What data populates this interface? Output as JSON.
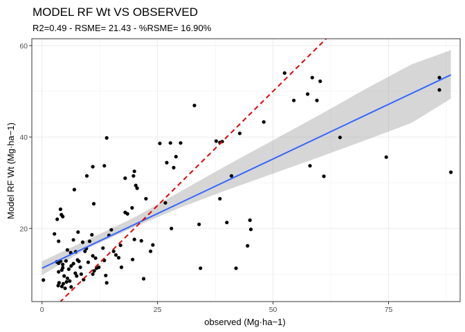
{
  "chart_data": {
    "type": "scatter",
    "title": "MODEL RF Wt VS OBSERVED",
    "subtitle": "R2=0.49 - RSME= 21.43 - %RSME= 16.90%",
    "xlabel": "observed (Mg·ha−1)",
    "ylabel": "Model RF Wt (Mg·ha−1)",
    "xlim": [
      -2.2,
      90.5
    ],
    "ylim": [
      4.0,
      61.5
    ],
    "x_ticks": [
      0,
      25,
      50,
      75
    ],
    "y_ticks": [
      20,
      40,
      60
    ],
    "grid": true,
    "legend": "none",
    "colors": {
      "points": "#000000",
      "fit_line": "#3366ff",
      "ci_band": "#999999",
      "identity_line": "#e00000",
      "panel_border": "#333333",
      "grid": "#ebebeb"
    },
    "fit_line": {
      "x": [
        0,
        88.5
      ],
      "y": [
        11.3,
        53.6
      ]
    },
    "confidence_band": {
      "x": [
        0,
        10,
        20,
        30,
        40,
        50,
        60,
        70,
        80,
        88.5
      ],
      "lower": [
        9.8,
        15.7,
        20.3,
        24.6,
        28.4,
        32.0,
        35.6,
        39.3,
        43.1,
        48.4
      ],
      "upper": [
        12.8,
        17.6,
        22.4,
        28.1,
        33.8,
        39.3,
        44.8,
        50.5,
        55.9,
        59.0
      ]
    },
    "identity_line": {
      "x": [
        0,
        62
      ],
      "y": [
        0,
        62
      ]
    },
    "points": [
      [
        0.3,
        8.7
      ],
      [
        2.7,
        18.8
      ],
      [
        3.3,
        22.0
      ],
      [
        3.6,
        17.2
      ],
      [
        4.0,
        24.2
      ],
      [
        4.2,
        23.0
      ],
      [
        4.5,
        22.6
      ],
      [
        3.2,
        12.7
      ],
      [
        3.6,
        12.4
      ],
      [
        4.0,
        12.8
      ],
      [
        4.5,
        12.1
      ],
      [
        5.2,
        12.9
      ],
      [
        5.5,
        15.3
      ],
      [
        3.6,
        10.5
      ],
      [
        4.3,
        10.9
      ],
      [
        4.5,
        11.4
      ],
      [
        4.8,
        9.6
      ],
      [
        5.5,
        9.1
      ],
      [
        3.7,
        8.1
      ],
      [
        4.3,
        7.3
      ],
      [
        4.6,
        7.9
      ],
      [
        5.0,
        6.9
      ],
      [
        5.3,
        8.3
      ],
      [
        6.0,
        8.5
      ],
      [
        6.3,
        7.2
      ],
      [
        3.5,
        7.5
      ],
      [
        5.8,
        11.1
      ],
      [
        6.3,
        11.8
      ],
      [
        6.8,
        12.3
      ],
      [
        7.2,
        10.2
      ],
      [
        7.5,
        9.6
      ],
      [
        7.7,
        13.1
      ],
      [
        8.0,
        12.8
      ],
      [
        8.3,
        11.5
      ],
      [
        8.5,
        10.0
      ],
      [
        9.0,
        8.8
      ],
      [
        6.2,
        14.7
      ],
      [
        6.8,
        17.5
      ],
      [
        7.3,
        14.9
      ],
      [
        7.8,
        19.2
      ],
      [
        8.8,
        17.0
      ],
      [
        9.3,
        15.0
      ],
      [
        9.6,
        15.6
      ],
      [
        10.0,
        12.6
      ],
      [
        10.3,
        17.2
      ],
      [
        10.8,
        18.6
      ],
      [
        11.0,
        14.0
      ],
      [
        11.6,
        13.5
      ],
      [
        11.8,
        11.3
      ],
      [
        12.3,
        11.5
      ],
      [
        13.2,
        15.7
      ],
      [
        13.5,
        13.0
      ],
      [
        13.8,
        9.7
      ],
      [
        14.0,
        8.1
      ],
      [
        14.5,
        18.5
      ],
      [
        15.0,
        19.7
      ],
      [
        15.5,
        15.0
      ],
      [
        16.0,
        14.2
      ],
      [
        16.6,
        13.6
      ],
      [
        17.0,
        16.3
      ],
      [
        17.2,
        11.5
      ],
      [
        11.3,
        10.7
      ],
      [
        11.0,
        10.0
      ],
      [
        7.0,
        28.5
      ],
      [
        9.7,
        31.5
      ],
      [
        11.0,
        33.5
      ],
      [
        11.2,
        25.4
      ],
      [
        13.5,
        33.7
      ],
      [
        14.0,
        39.8
      ],
      [
        18.0,
        23.5
      ],
      [
        18.5,
        23.2
      ],
      [
        18.0,
        31.0
      ],
      [
        19.8,
        31.5
      ],
      [
        20.0,
        32.5
      ],
      [
        20.3,
        29.4
      ],
      [
        20.6,
        28.8
      ],
      [
        19.5,
        24.5
      ],
      [
        20.0,
        17.6
      ],
      [
        21.5,
        17.3
      ],
      [
        19.6,
        13.2
      ],
      [
        22.0,
        9.0
      ],
      [
        22.5,
        26.5
      ],
      [
        23.5,
        15.0
      ],
      [
        24.0,
        16.4
      ],
      [
        25.5,
        38.6
      ],
      [
        27.0,
        34.4
      ],
      [
        27.8,
        38.7
      ],
      [
        28.5,
        33.3
      ],
      [
        30.0,
        38.7
      ],
      [
        29.0,
        35.7
      ],
      [
        26.7,
        25.6
      ],
      [
        28.0,
        20.0
      ],
      [
        33.0,
        46.9
      ],
      [
        34.0,
        20.9
      ],
      [
        34.3,
        11.3
      ],
      [
        37.7,
        39.1
      ],
      [
        38.5,
        38.8
      ],
      [
        38.5,
        26.5
      ],
      [
        39.0,
        39.0
      ],
      [
        40.0,
        21.3
      ],
      [
        41.0,
        31.5
      ],
      [
        42.0,
        11.3
      ],
      [
        42.8,
        40.8
      ],
      [
        44.5,
        16.2
      ],
      [
        45.0,
        21.8
      ],
      [
        45.2,
        19.8
      ],
      [
        48.0,
        43.3
      ],
      [
        52.5,
        54.0
      ],
      [
        54.5,
        48.0
      ],
      [
        57.5,
        49.4
      ],
      [
        58.5,
        53.0
      ],
      [
        59.5,
        48.0
      ],
      [
        60.2,
        52.2
      ],
      [
        58.0,
        33.7
      ],
      [
        61.0,
        31.4
      ],
      [
        64.5,
        39.9
      ],
      [
        74.5,
        35.6
      ],
      [
        86.0,
        53.0
      ],
      [
        86.0,
        50.3
      ],
      [
        88.5,
        32.3
      ]
    ]
  }
}
